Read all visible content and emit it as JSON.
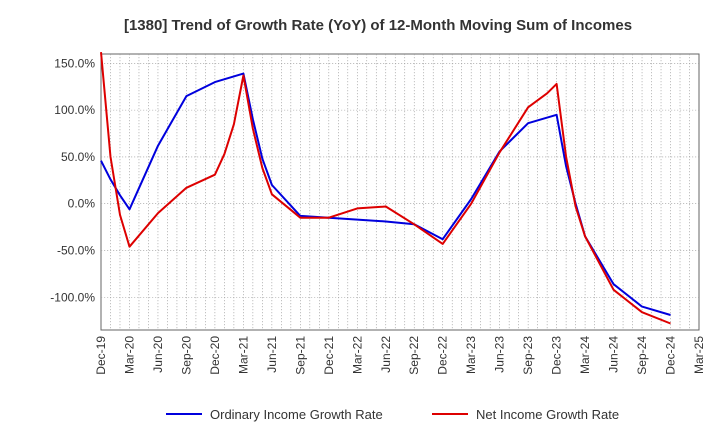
{
  "chart_data": {
    "type": "line",
    "title": "[1380]  Trend of Growth Rate (YoY) of 12-Month Moving Sum of Incomes",
    "xlabel": "",
    "ylabel": "",
    "x_tick_labels": [
      "Dec-19",
      "Mar-20",
      "Jun-20",
      "Sep-20",
      "Dec-20",
      "Mar-21",
      "Jun-21",
      "Sep-21",
      "Dec-21",
      "Mar-22",
      "Jun-22",
      "Sep-22",
      "Dec-22",
      "Mar-23",
      "Jun-23",
      "Sep-23",
      "Dec-23",
      "Mar-24",
      "Jun-24",
      "Sep-24",
      "Dec-24",
      "Mar-25"
    ],
    "y_tick_labels": [
      "150.0%",
      "100.0%",
      "50.0%",
      "0.0%",
      "-50.0%",
      "-100.0%"
    ],
    "y_ticks": [
      150,
      100,
      50,
      0,
      -50,
      -100
    ],
    "ylim": [
      -135,
      160
    ],
    "grid": true,
    "legend_position": "bottom",
    "series": [
      {
        "name": "Ordinary Income Growth Rate",
        "color": "#0000dd",
        "points": [
          [
            "Dec-19",
            46
          ],
          [
            "Jan-20",
            26
          ],
          [
            "Feb-20",
            9
          ],
          [
            "Mar-20",
            -6
          ],
          [
            "Jun-20",
            62
          ],
          [
            "Sep-20",
            115
          ],
          [
            "Dec-20",
            130
          ],
          [
            "Mar-21",
            139
          ],
          [
            "Apr-21",
            90
          ],
          [
            "May-21",
            48
          ],
          [
            "Jun-21",
            20
          ],
          [
            "Sep-21",
            -13
          ],
          [
            "Dec-21",
            -15
          ],
          [
            "Mar-22",
            -17
          ],
          [
            "Jun-22",
            -19
          ],
          [
            "Sep-22",
            -22
          ],
          [
            "Dec-22",
            -38
          ],
          [
            "Mar-23",
            5
          ],
          [
            "Jun-23",
            56
          ],
          [
            "Sep-23",
            86
          ],
          [
            "Dec-23",
            95
          ],
          [
            "Jan-24",
            40
          ],
          [
            "Feb-24",
            0
          ],
          [
            "Mar-24",
            -35
          ],
          [
            "Jun-24",
            -86
          ],
          [
            "Sep-24",
            -110
          ],
          [
            "Dec-24",
            -119
          ]
        ]
      },
      {
        "name": "Net Income Growth Rate",
        "color": "#dd0000",
        "points": [
          [
            "Dec-19",
            162
          ],
          [
            "Jan-20",
            50
          ],
          [
            "Feb-20",
            -12
          ],
          [
            "Mar-20",
            -46
          ],
          [
            "Jun-20",
            -10
          ],
          [
            "Sep-20",
            17
          ],
          [
            "Dec-20",
            31
          ],
          [
            "Jan-21",
            53
          ],
          [
            "Feb-21",
            85
          ],
          [
            "Mar-21",
            137
          ],
          [
            "Apr-21",
            80
          ],
          [
            "May-21",
            38
          ],
          [
            "Jun-21",
            10
          ],
          [
            "Sep-21",
            -15
          ],
          [
            "Dec-21",
            -15
          ],
          [
            "Mar-22",
            -5
          ],
          [
            "Jun-22",
            -3
          ],
          [
            "Sep-22",
            -22
          ],
          [
            "Dec-22",
            -43
          ],
          [
            "Mar-23",
            0
          ],
          [
            "Jun-23",
            55
          ],
          [
            "Sep-23",
            103
          ],
          [
            "Nov-23",
            118
          ],
          [
            "Dec-23",
            128
          ],
          [
            "Jan-24",
            50
          ],
          [
            "Feb-24",
            -3
          ],
          [
            "Mar-24",
            -35
          ],
          [
            "Jun-24",
            -92
          ],
          [
            "Sep-24",
            -116
          ],
          [
            "Dec-24",
            -128
          ]
        ]
      }
    ]
  }
}
